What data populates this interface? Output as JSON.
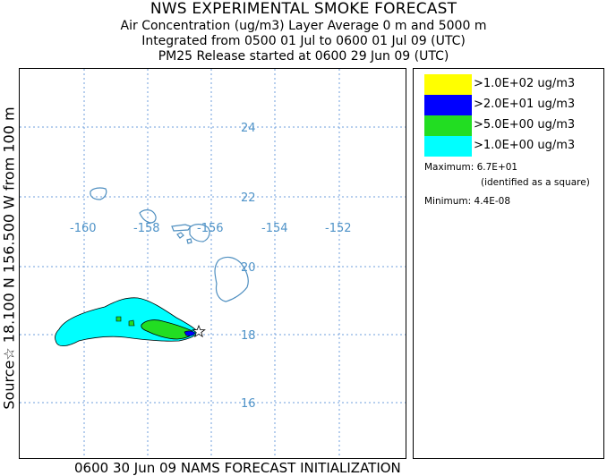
{
  "header": {
    "title": "NWS EXPERIMENTAL SMOKE FORECAST",
    "line2": "Air Concentration (ug/m3) Layer Average    0 m and  5000 m",
    "line3": "Integrated from 0500 01 Jul to 0600 01 Jul 09 (UTC)",
    "line4": "PM25 Release started at 0600 29 Jun 09 (UTC)"
  },
  "side_label": "Source☆ 18.100 N 156.500 W    from  100 m",
  "bottom_label": "0600 30 Jun 09 NAMS FORECAST INITIALIZATION",
  "map": {
    "longitude_labels": [
      "-160",
      "-158",
      "-156",
      "-154",
      "-152"
    ],
    "latitude_labels": [
      "24",
      "22",
      "20",
      "18",
      "16"
    ],
    "gridline_color": "#6f9fdc",
    "label_color": "#4f93c8",
    "coastline_color": "#4f8fc0",
    "source_marker": "star-icon"
  },
  "legend": {
    "items": [
      {
        "label": ">1.0E+02 ug/m3",
        "color": "#ffff00"
      },
      {
        "label": ">2.0E+01 ug/m3",
        "color": "#0000ff"
      },
      {
        "label": ">5.0E+00 ug/m3",
        "color": "#22dd22"
      },
      {
        "label": ">1.0E+00 ug/m3",
        "color": "#00ffff"
      }
    ],
    "maximum": "Maximum: 6.7E+01",
    "identified": "(identified as a square)",
    "minimum": "Minimum: 4.4E-08"
  }
}
